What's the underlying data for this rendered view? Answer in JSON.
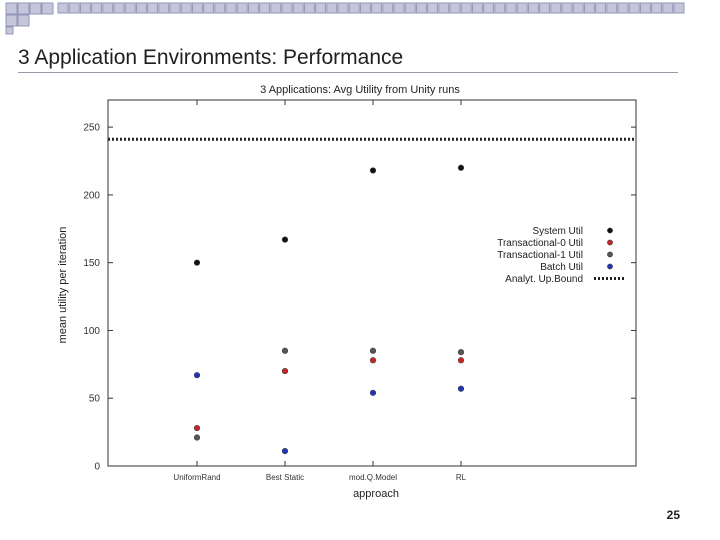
{
  "slide": {
    "title": "3 Application Environments: Performance",
    "page_number": "25",
    "colors": {
      "title": "#1f1f1f",
      "deco_square": "#c5c6dc",
      "deco_border": "#9396b8"
    }
  },
  "chart_data": {
    "type": "scatter",
    "title": "3 Applications: Avg Utility from Unity runs",
    "xlabel": "approach",
    "ylabel": "mean utility per iteration",
    "categories": [
      "UniformRand",
      "Best Static",
      "mod.Q.Model",
      "RL"
    ],
    "ylim": [
      0,
      270
    ],
    "yticks": [
      0,
      50,
      100,
      150,
      200,
      250
    ],
    "legend_position": "right",
    "grid": false,
    "series": [
      {
        "name": "System Util",
        "color": "#111111",
        "values": [
          150,
          167,
          218,
          220
        ]
      },
      {
        "name": "Transactional-0 Util",
        "color": "#cc2222",
        "values": [
          28,
          70,
          78,
          78
        ]
      },
      {
        "name": "Transactional-1 Util",
        "color": "#555555",
        "values": [
          21,
          85,
          85,
          84
        ]
      },
      {
        "name": "Batch Util",
        "color": "#2233bb",
        "values": [
          67,
          11,
          54,
          57
        ]
      }
    ],
    "bound": {
      "name": "Analyt. Up.Bound",
      "value": 241
    }
  }
}
